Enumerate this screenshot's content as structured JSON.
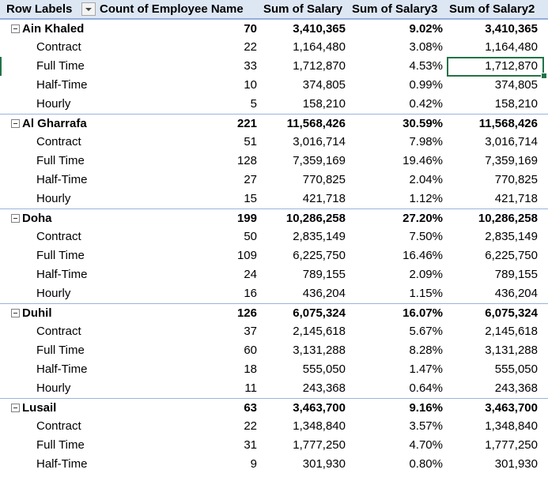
{
  "header": {
    "row_labels": "Row Labels",
    "col1": "Count of Employee Name",
    "col2": "Sum of Salary",
    "col3": "Sum of Salary3",
    "col4": "Sum of Salary2"
  },
  "groups": [
    {
      "name": "Ain Khaled",
      "count": "70",
      "salary": "3,410,365",
      "pct": "9.02%",
      "salary2": "3,410,365",
      "items": [
        {
          "name": "Contract",
          "count": "22",
          "salary": "1,164,480",
          "pct": "3.08%",
          "salary2": "1,164,480"
        },
        {
          "name": "Full Time",
          "count": "33",
          "salary": "1,712,870",
          "pct": "4.53%",
          "salary2": "1,712,870"
        },
        {
          "name": "Half-Time",
          "count": "10",
          "salary": "374,805",
          "pct": "0.99%",
          "salary2": "374,805"
        },
        {
          "name": "Hourly",
          "count": "5",
          "salary": "158,210",
          "pct": "0.42%",
          "salary2": "158,210"
        }
      ]
    },
    {
      "name": "Al Gharrafa",
      "count": "221",
      "salary": "11,568,426",
      "pct": "30.59%",
      "salary2": "11,568,426",
      "items": [
        {
          "name": "Contract",
          "count": "51",
          "salary": "3,016,714",
          "pct": "7.98%",
          "salary2": "3,016,714"
        },
        {
          "name": "Full Time",
          "count": "128",
          "salary": "7,359,169",
          "pct": "19.46%",
          "salary2": "7,359,169"
        },
        {
          "name": "Half-Time",
          "count": "27",
          "salary": "770,825",
          "pct": "2.04%",
          "salary2": "770,825"
        },
        {
          "name": "Hourly",
          "count": "15",
          "salary": "421,718",
          "pct": "1.12%",
          "salary2": "421,718"
        }
      ]
    },
    {
      "name": "Doha",
      "count": "199",
      "salary": "10,286,258",
      "pct": "27.20%",
      "salary2": "10,286,258",
      "items": [
        {
          "name": "Contract",
          "count": "50",
          "salary": "2,835,149",
          "pct": "7.50%",
          "salary2": "2,835,149"
        },
        {
          "name": "Full Time",
          "count": "109",
          "salary": "6,225,750",
          "pct": "16.46%",
          "salary2": "6,225,750"
        },
        {
          "name": "Half-Time",
          "count": "24",
          "salary": "789,155",
          "pct": "2.09%",
          "salary2": "789,155"
        },
        {
          "name": "Hourly",
          "count": "16",
          "salary": "436,204",
          "pct": "1.15%",
          "salary2": "436,204"
        }
      ]
    },
    {
      "name": "Duhil",
      "count": "126",
      "salary": "6,075,324",
      "pct": "16.07%",
      "salary2": "6,075,324",
      "items": [
        {
          "name": "Contract",
          "count": "37",
          "salary": "2,145,618",
          "pct": "5.67%",
          "salary2": "2,145,618"
        },
        {
          "name": "Full Time",
          "count": "60",
          "salary": "3,131,288",
          "pct": "8.28%",
          "salary2": "3,131,288"
        },
        {
          "name": "Half-Time",
          "count": "18",
          "salary": "555,050",
          "pct": "1.47%",
          "salary2": "555,050"
        },
        {
          "name": "Hourly",
          "count": "11",
          "salary": "243,368",
          "pct": "0.64%",
          "salary2": "243,368"
        }
      ]
    },
    {
      "name": "Lusail",
      "count": "63",
      "salary": "3,463,700",
      "pct": "9.16%",
      "salary2": "3,463,700",
      "items": [
        {
          "name": "Contract",
          "count": "22",
          "salary": "1,348,840",
          "pct": "3.57%",
          "salary2": "1,348,840"
        },
        {
          "name": "Full Time",
          "count": "31",
          "salary": "1,777,250",
          "pct": "4.70%",
          "salary2": "1,777,250"
        },
        {
          "name": "Half-Time",
          "count": "9",
          "salary": "301,930",
          "pct": "0.80%",
          "salary2": "301,930"
        }
      ]
    }
  ],
  "colors": {
    "header_bg": "#dde7f4",
    "group_border": "#9bb3dd",
    "selection": "#217346"
  }
}
